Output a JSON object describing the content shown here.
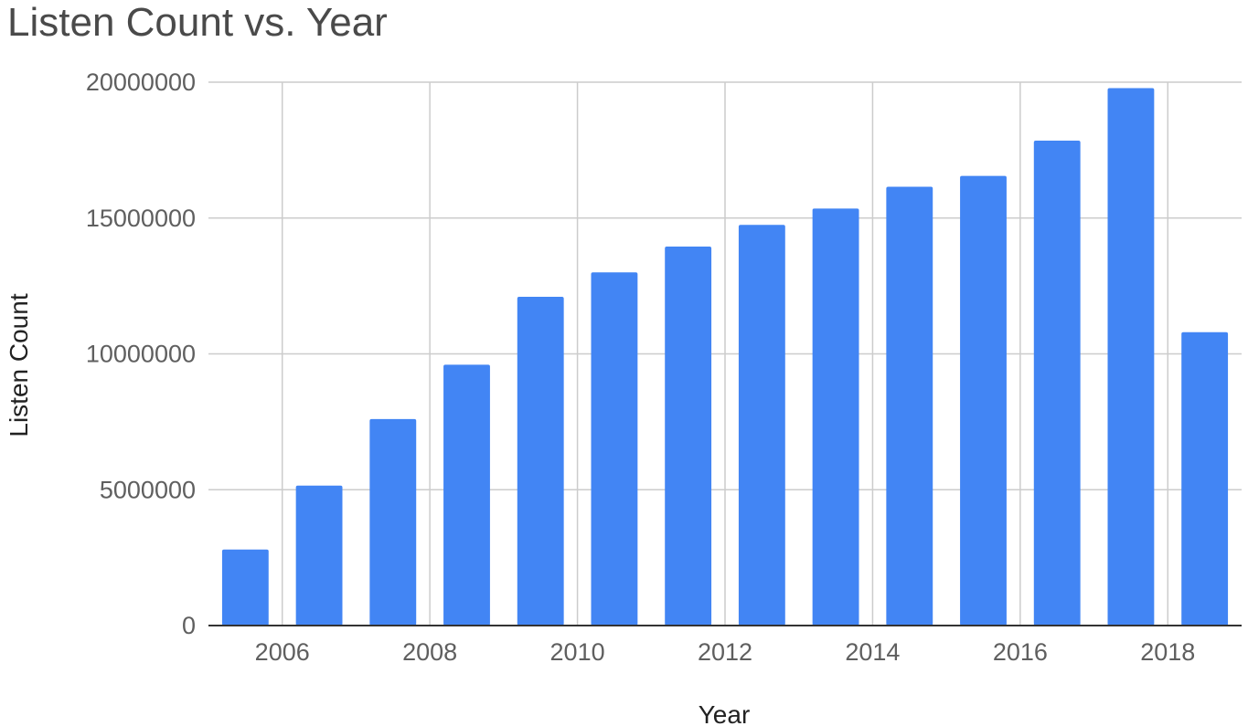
{
  "chart_data": {
    "type": "bar",
    "title": "Listen Count vs. Year",
    "xlabel": "Year",
    "ylabel": "Listen Count",
    "categories": [
      2005,
      2006,
      2007,
      2008,
      2009,
      2010,
      2011,
      2012,
      2013,
      2014,
      2015,
      2016,
      2017,
      2018
    ],
    "x_tick_labels": [
      "2006",
      "2008",
      "2010",
      "2012",
      "2014",
      "2016",
      "2018"
    ],
    "values": [
      2800000,
      5150000,
      7600000,
      9600000,
      12100000,
      13000000,
      13950000,
      14750000,
      15350000,
      16150000,
      16550000,
      17850000,
      19780000,
      10800000
    ],
    "y_ticks": [
      0,
      5000000,
      10000000,
      15000000,
      20000000
    ],
    "y_tick_labels": [
      "0",
      "5000000",
      "10000000",
      "15000000",
      "20000000"
    ],
    "ylim": [
      0,
      20000000
    ],
    "grid": true,
    "legend": "none",
    "colors": {
      "bar": "#4285f4",
      "grid": "#cccccc",
      "axis": "#333333"
    }
  }
}
